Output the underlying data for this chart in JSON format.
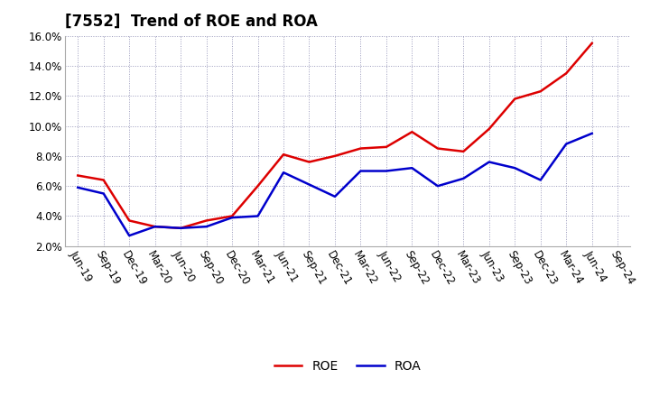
{
  "title": "[7552]  Trend of ROE and ROA",
  "x_labels": [
    "Jun-19",
    "Sep-19",
    "Dec-19",
    "Mar-20",
    "Jun-20",
    "Sep-20",
    "Dec-20",
    "Mar-21",
    "Jun-21",
    "Sep-21",
    "Dec-21",
    "Mar-22",
    "Jun-22",
    "Sep-22",
    "Dec-22",
    "Mar-23",
    "Jun-23",
    "Sep-23",
    "Dec-23",
    "Mar-24",
    "Jun-24",
    "Sep-24"
  ],
  "roe": [
    6.7,
    6.4,
    3.7,
    3.3,
    3.2,
    3.7,
    4.0,
    6.0,
    8.1,
    7.6,
    8.0,
    8.5,
    8.6,
    9.6,
    8.5,
    8.3,
    9.8,
    11.8,
    12.3,
    13.5,
    15.5,
    null
  ],
  "roa": [
    5.9,
    5.5,
    2.7,
    3.3,
    3.2,
    3.3,
    3.9,
    4.0,
    6.9,
    6.1,
    5.3,
    7.0,
    7.0,
    7.2,
    6.0,
    6.5,
    7.6,
    7.2,
    6.4,
    8.8,
    9.5,
    null
  ],
  "roe_color": "#dd0000",
  "roa_color": "#0000cc",
  "ylim": [
    2.0,
    16.0
  ],
  "yticks": [
    2.0,
    4.0,
    6.0,
    8.0,
    10.0,
    12.0,
    14.0,
    16.0
  ],
  "background_color": "#ffffff",
  "grid_color": "#9999bb",
  "title_fontsize": 12,
  "legend_fontsize": 10,
  "tick_fontsize": 8.5
}
